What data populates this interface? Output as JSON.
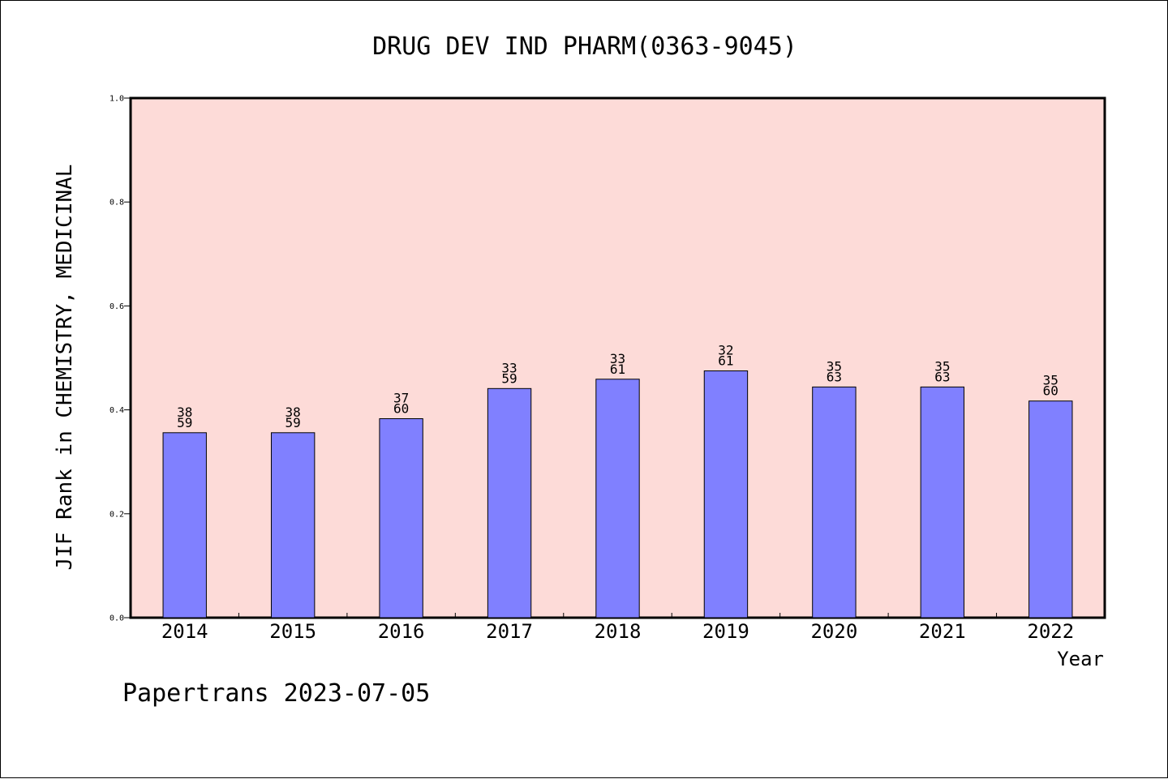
{
  "chart_data": {
    "type": "bar",
    "title": "DRUG DEV IND PHARM(0363-9045)",
    "ylabel": "JIF Rank in CHEMISTRY, MEDICINAL",
    "xlabel": "Year",
    "categories": [
      "2014",
      "2015",
      "2016",
      "2017",
      "2018",
      "2019",
      "2020",
      "2021",
      "2022"
    ],
    "values": [
      0.356,
      0.356,
      0.383,
      0.441,
      0.459,
      0.475,
      0.444,
      0.444,
      0.417
    ],
    "rank": [
      "38",
      "38",
      "37",
      "33",
      "33",
      "32",
      "35",
      "35",
      "35"
    ],
    "total": [
      "59",
      "59",
      "60",
      "59",
      "61",
      "61",
      "63",
      "63",
      "60"
    ],
    "ylim": [
      0,
      1.0
    ],
    "yticks": [
      "0.0",
      "0.2",
      "0.4",
      "0.6",
      "0.8",
      "1.0"
    ],
    "grid": false,
    "bar_color": "#8080ff",
    "plot_background": "#fddbd8"
  },
  "footer": "Papertrans 2023-07-05"
}
